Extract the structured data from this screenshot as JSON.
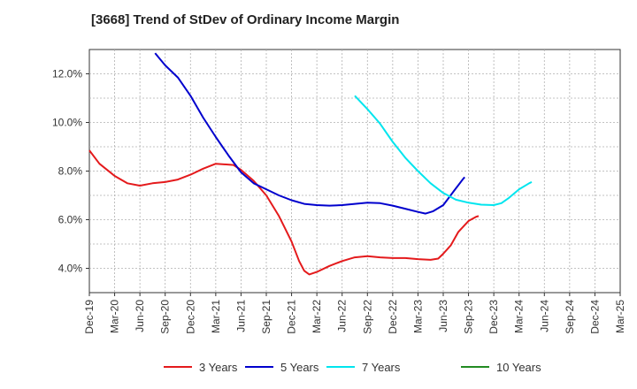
{
  "chart_data": {
    "type": "line",
    "title": "[3668]  Trend of StDev of Ordinary Income Margin",
    "xlabel": "",
    "ylabel": "",
    "x": [
      "Dec-19",
      "Mar-20",
      "Jun-20",
      "Sep-20",
      "Dec-20",
      "Mar-21",
      "Jun-21",
      "Sep-21",
      "Dec-21",
      "Mar-22",
      "Jun-22",
      "Sep-22",
      "Dec-22",
      "Mar-23",
      "Jun-23",
      "Sep-23",
      "Dec-23",
      "Mar-24",
      "Jun-24",
      "Sep-24",
      "Dec-24",
      "Mar-25"
    ],
    "y_ticks": [
      "4.0%",
      "6.0%",
      "8.0%",
      "10.0%",
      "12.0%"
    ],
    "ylim": [
      3.0,
      13.0
    ],
    "grid": true,
    "legend_position": "bottom",
    "series": [
      {
        "name": "3 Years",
        "color": "#e41a1c",
        "points": [
          [
            0,
            8.85
          ],
          [
            0.4,
            8.3
          ],
          [
            1,
            7.8
          ],
          [
            1.5,
            7.5
          ],
          [
            2,
            7.4
          ],
          [
            2.5,
            7.5
          ],
          [
            3,
            7.55
          ],
          [
            3.5,
            7.65
          ],
          [
            4,
            7.85
          ],
          [
            4.5,
            8.1
          ],
          [
            5,
            8.3
          ],
          [
            5.7,
            8.25
          ],
          [
            6,
            8.05
          ],
          [
            6.5,
            7.6
          ],
          [
            7,
            7.0
          ],
          [
            7.5,
            6.15
          ],
          [
            8,
            5.1
          ],
          [
            8.3,
            4.3
          ],
          [
            8.5,
            3.9
          ],
          [
            8.7,
            3.75
          ],
          [
            9,
            3.85
          ],
          [
            9.5,
            4.1
          ],
          [
            10,
            4.3
          ],
          [
            10.5,
            4.45
          ],
          [
            11,
            4.5
          ],
          [
            11.5,
            4.45
          ],
          [
            12,
            4.42
          ],
          [
            12.5,
            4.42
          ],
          [
            13,
            4.38
          ],
          [
            13.5,
            4.35
          ],
          [
            13.8,
            4.4
          ],
          [
            14,
            4.6
          ],
          [
            14.3,
            4.95
          ],
          [
            14.6,
            5.5
          ],
          [
            15,
            5.95
          ],
          [
            15.3,
            6.12
          ],
          [
            15.4,
            6.15
          ]
        ]
      },
      {
        "name": "5 Years",
        "color": "#0000cd",
        "points": [
          [
            2.6,
            12.85
          ],
          [
            3,
            12.35
          ],
          [
            3.5,
            11.85
          ],
          [
            4,
            11.1
          ],
          [
            4.5,
            10.2
          ],
          [
            5,
            9.4
          ],
          [
            5.5,
            8.65
          ],
          [
            6,
            7.95
          ],
          [
            6.5,
            7.5
          ],
          [
            7,
            7.25
          ],
          [
            7.5,
            7.0
          ],
          [
            8,
            6.8
          ],
          [
            8.5,
            6.65
          ],
          [
            9,
            6.6
          ],
          [
            9.5,
            6.58
          ],
          [
            10,
            6.6
          ],
          [
            10.5,
            6.65
          ],
          [
            11,
            6.7
          ],
          [
            11.5,
            6.68
          ],
          [
            12,
            6.58
          ],
          [
            12.5,
            6.45
          ],
          [
            13,
            6.32
          ],
          [
            13.3,
            6.25
          ],
          [
            13.6,
            6.35
          ],
          [
            14,
            6.6
          ],
          [
            14.4,
            7.15
          ],
          [
            14.8,
            7.7
          ],
          [
            14.85,
            7.75
          ]
        ]
      },
      {
        "name": "7 Years",
        "color": "#00e5ee",
        "points": [
          [
            10.5,
            11.1
          ],
          [
            11,
            10.55
          ],
          [
            11.5,
            9.95
          ],
          [
            12,
            9.2
          ],
          [
            12.5,
            8.55
          ],
          [
            13,
            8.0
          ],
          [
            13.5,
            7.5
          ],
          [
            14,
            7.1
          ],
          [
            14.5,
            6.82
          ],
          [
            15,
            6.7
          ],
          [
            15.5,
            6.62
          ],
          [
            16,
            6.6
          ],
          [
            16.3,
            6.68
          ],
          [
            16.6,
            6.9
          ],
          [
            17,
            7.25
          ],
          [
            17.4,
            7.5
          ],
          [
            17.5,
            7.55
          ]
        ]
      },
      {
        "name": "10 Years",
        "color": "#228b22",
        "points": []
      }
    ]
  }
}
